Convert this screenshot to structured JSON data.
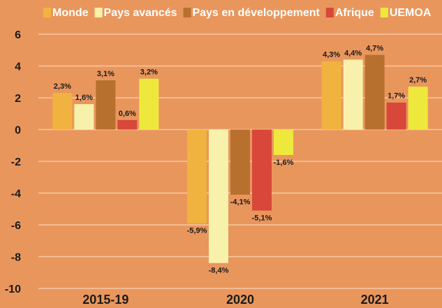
{
  "chart_data": {
    "type": "bar",
    "categories": [
      "2015-19",
      "2020",
      "2021"
    ],
    "series": [
      {
        "name": "Monde",
        "color": "#f1b33f",
        "values": [
          2.3,
          -5.9,
          4.3
        ],
        "value_labels": [
          "2,3%",
          "-5,9%",
          "4,3%"
        ]
      },
      {
        "name": "Pays avancés",
        "color": "#f8f1ac",
        "values": [
          1.6,
          -8.4,
          4.4
        ],
        "value_labels": [
          "1,6%",
          "-8,4%",
          "4,4%"
        ]
      },
      {
        "name": "Pays en développement",
        "color": "#b8702f",
        "values": [
          3.1,
          -4.1,
          4.7
        ],
        "value_labels": [
          "3,1%",
          "-4,1%",
          "4,7%"
        ]
      },
      {
        "name": "Afrique",
        "color": "#d8473a",
        "values": [
          0.6,
          -5.1,
          1.7
        ],
        "value_labels": [
          "0,6%",
          "-5,1%",
          "1,7%"
        ]
      },
      {
        "name": "UEMOA",
        "color": "#efe83c",
        "values": [
          3.2,
          -1.6,
          2.7
        ],
        "value_labels": [
          "3,2%",
          "-1,6%",
          "2,7%"
        ]
      }
    ],
    "ylim": [
      -10,
      6
    ],
    "yticks": [
      -10,
      -8,
      -6,
      -4,
      -2,
      0,
      2,
      4,
      6
    ],
    "grid": true,
    "legend": "top"
  }
}
